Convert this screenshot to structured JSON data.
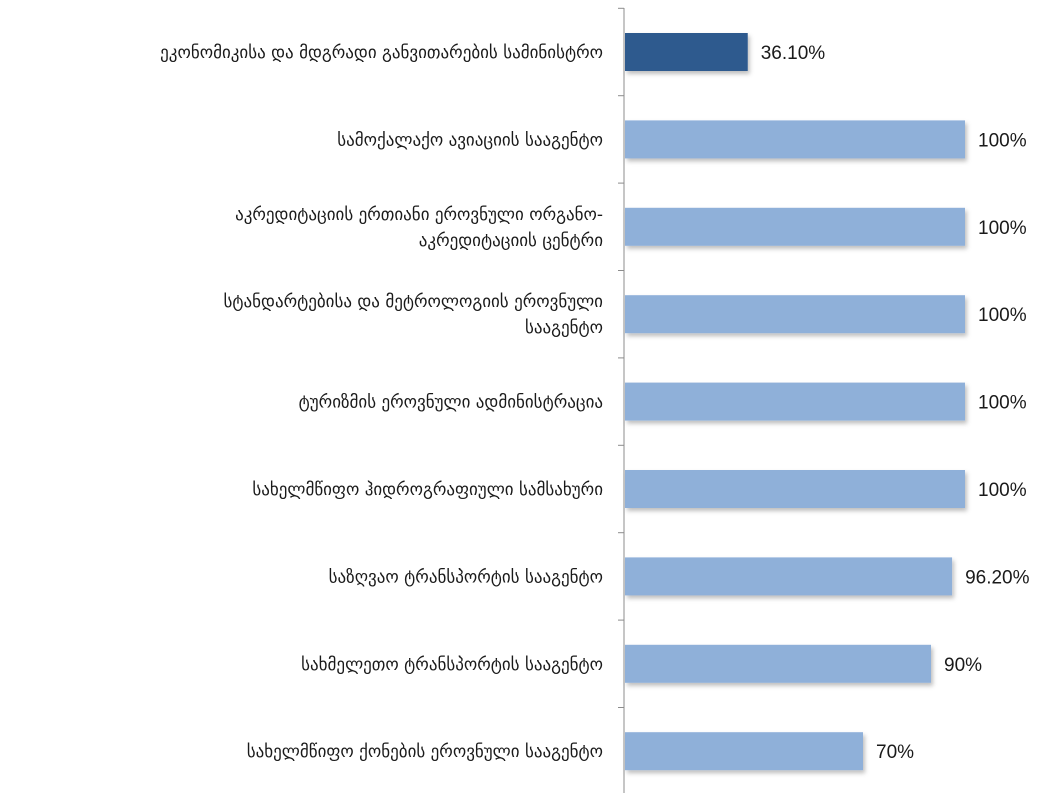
{
  "chart_data": {
    "type": "bar",
    "orientation": "horizontal",
    "xlim": [
      0,
      100
    ],
    "grid": false,
    "legend": "none",
    "bar_colors": {
      "highlight": "#2f5a8e",
      "default": "#8fb0d9"
    },
    "categories": [
      [
        "ეკონომიკისა და მდგრადი განვითარების სამინისტრო"
      ],
      [
        "სამოქალაქო ავიაციის სააგენტო"
      ],
      [
        "აკრედიტაციის ერთიანი ეროვნული ორგანო-",
        "აკრედიტაციის ცენტრი"
      ],
      [
        "სტანდარტებისა და მეტროლოგიის ეროვნული",
        "სააგენტო"
      ],
      [
        "ტურიზმის ეროვნული ადმინისტრაცია"
      ],
      [
        "სახელმწიფო ჰიდროგრაფიული სამსახური"
      ],
      [
        "საზღვაო ტრანსპორტის სააგენტო"
      ],
      [
        "სახმელეთო ტრანსპორტის სააგენტო"
      ],
      [
        "სახელმწიფო ქონების ეროვნული სააგენტო"
      ]
    ],
    "values": [
      36.1,
      100,
      100,
      100,
      100,
      100,
      96.2,
      90,
      70
    ],
    "data_labels": [
      "36.10%",
      "100%",
      "100%",
      "100%",
      "100%",
      "100%",
      "96.20%",
      "90%",
      "70%"
    ],
    "highlight_index": 0
  }
}
